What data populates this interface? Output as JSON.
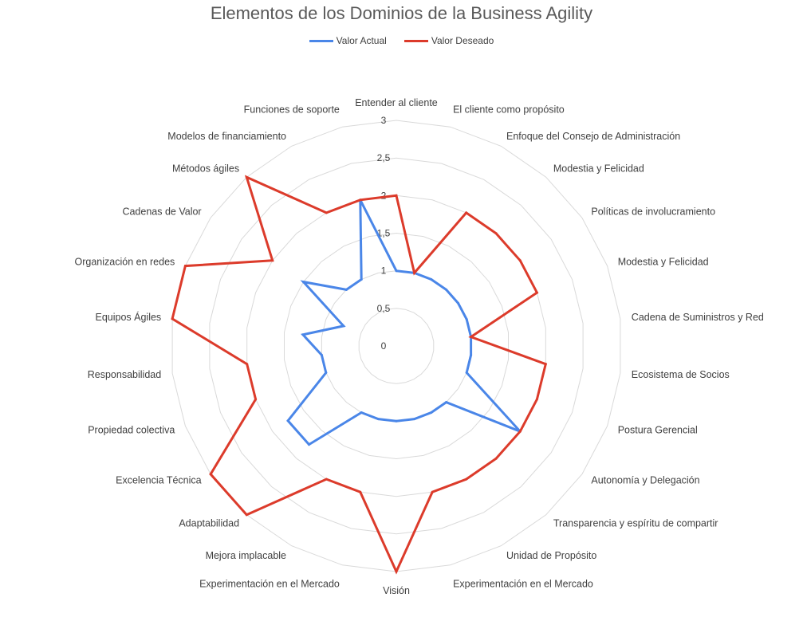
{
  "chart_data": {
    "type": "radar",
    "title": "Elementos de los Dominios de la Business Agility",
    "r_ticks": [
      "0",
      "0,5",
      "1",
      "1,5",
      "2",
      "2,5",
      "3"
    ],
    "rlim": [
      0,
      3
    ],
    "grid": true,
    "legend_position": "top",
    "categories": [
      "Entender al cliente",
      "El cliente como propósito",
      "Enfoque del Consejo de Administración",
      "Modestia y Felicidad",
      "Políticas de involucramiento",
      "Modestia y Felicidad",
      "Cadena de Suministros y Red",
      "Ecosistema de Socios",
      "Postura Gerencial",
      "Autonomía y Delegación",
      "Transparencia y espíritu de compartir",
      "Unidad de Propósito",
      "Experimentación en el Mercado",
      "Visión",
      "Experimentación en el Mercado",
      "Mejora implacable",
      "Adaptabilidad",
      "Excelencia Técnica",
      "Propiedad colectiva",
      "Responsabilidad",
      "Equipos Ágiles",
      "Organización en redes",
      "Cadenas de Valor",
      "Métodos ágiles",
      "Modelos de financiamiento",
      "Funciones de soporte"
    ],
    "series": [
      {
        "name": "Valor Actual",
        "color": "#4a86e8",
        "values": [
          1,
          1,
          1,
          1,
          1,
          1,
          1,
          1,
          1,
          2,
          1,
          1,
          1,
          1,
          1,
          1,
          1.75,
          1.75,
          1,
          1,
          1.25,
          0.75,
          1.5,
          1,
          1,
          2
        ]
      },
      {
        "name": "Valor Deseado",
        "color": "#dc3b2b",
        "values": [
          2,
          1,
          2,
          2,
          2,
          2,
          1,
          2,
          2,
          2,
          2,
          2,
          2,
          3,
          2,
          2,
          3,
          3,
          2,
          2,
          3,
          3,
          2,
          3,
          2,
          2
        ]
      }
    ]
  }
}
